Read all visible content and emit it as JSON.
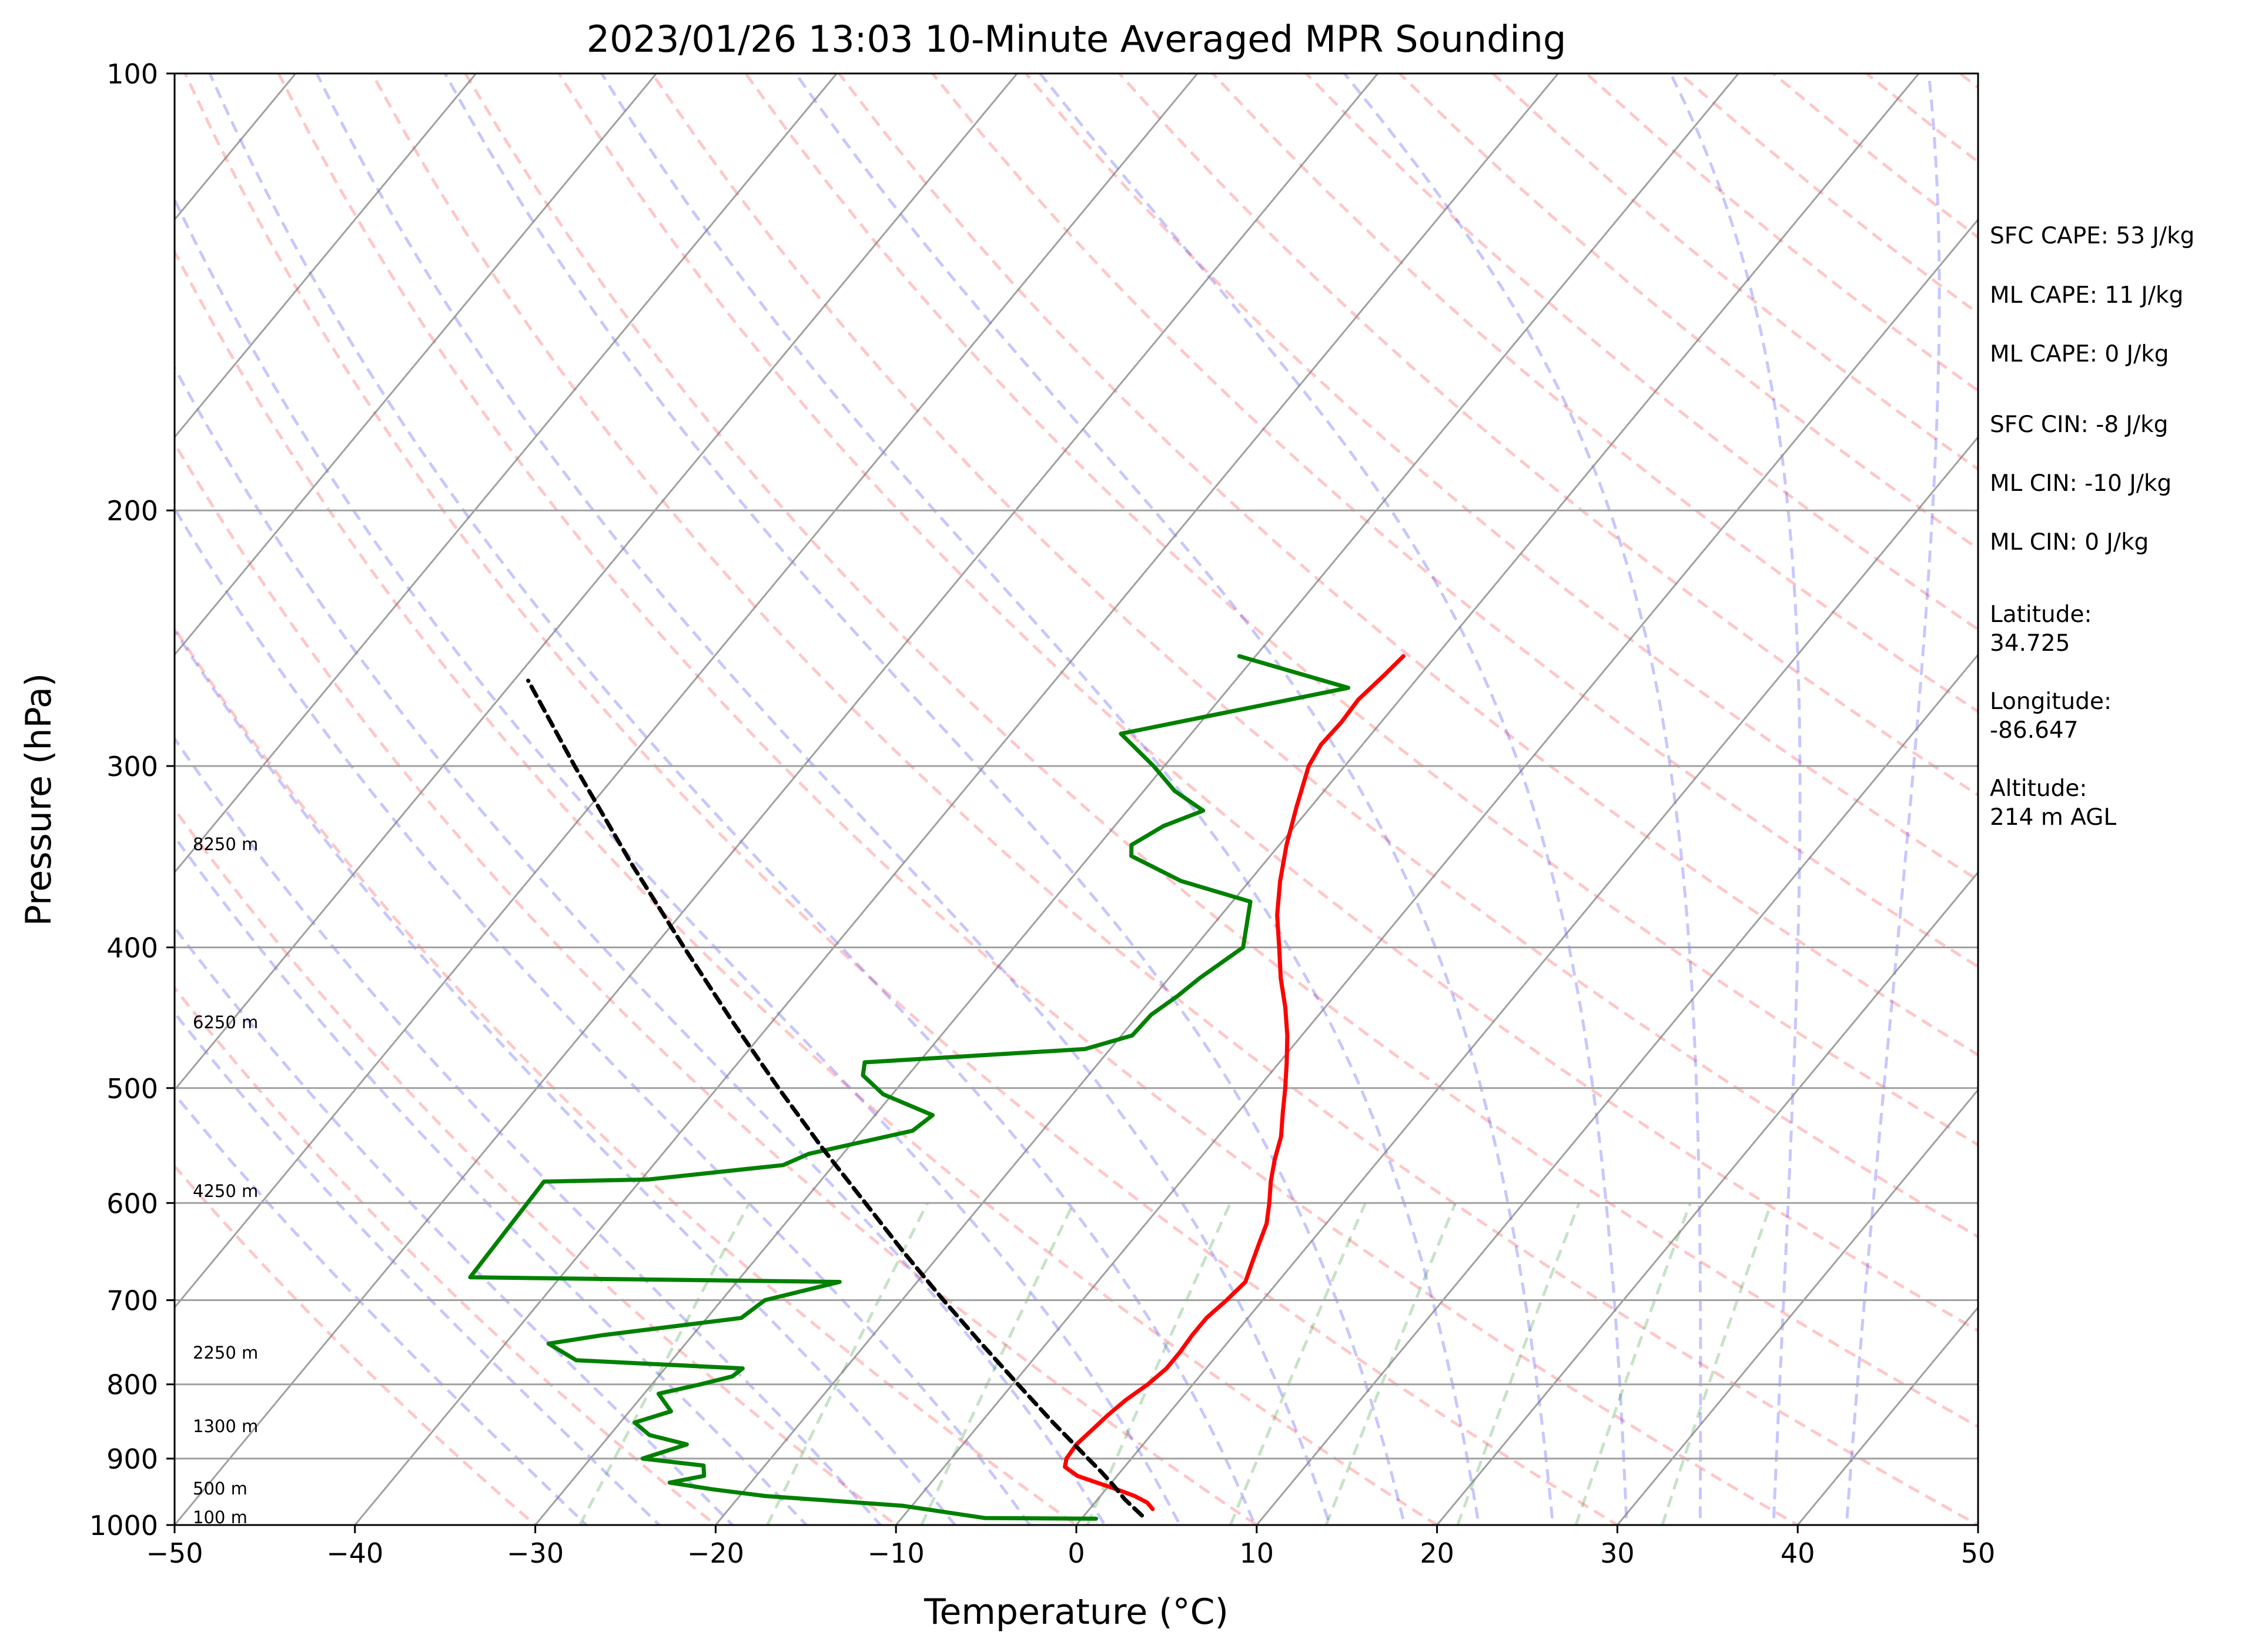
{
  "chart_data": {
    "type": "line",
    "title": "2023/01/26 13:03 10-Minute Averaged MPR Sounding",
    "xlabel": "Temperature (°C)",
    "ylabel": "Pressure (hPa)",
    "xlim": [
      -50,
      50
    ],
    "ylim": [
      1000,
      100
    ],
    "y_scale": "log",
    "skew": true,
    "grid": true,
    "x_ticks": [
      "−50",
      "−40",
      "−30",
      "−20",
      "−10",
      "0",
      "10",
      "20",
      "30",
      "40",
      "50"
    ],
    "y_ticks": [
      "1000",
      "900",
      "800",
      "700",
      "600",
      "500",
      "400",
      "300",
      "200",
      "100"
    ],
    "series": [
      {
        "id": "temperature",
        "color": "#ff0000",
        "points": [
          [
            975,
            3.5
          ],
          [
            965,
            2.9
          ],
          [
            955,
            1.9
          ],
          [
            945,
            0.6
          ],
          [
            935,
            -0.8
          ],
          [
            925,
            -2.2
          ],
          [
            912,
            -3.3
          ],
          [
            900,
            -3.6
          ],
          [
            880,
            -3.7
          ],
          [
            860,
            -3.5
          ],
          [
            840,
            -3.3
          ],
          [
            820,
            -3.0
          ],
          [
            800,
            -2.5
          ],
          [
            780,
            -2.2
          ],
          [
            760,
            -2.2
          ],
          [
            740,
            -2.3
          ],
          [
            720,
            -2.3
          ],
          [
            700,
            -2.0
          ],
          [
            680,
            -1.8
          ],
          [
            660,
            -2.3
          ],
          [
            640,
            -2.8
          ],
          [
            620,
            -3.3
          ],
          [
            600,
            -4.1
          ],
          [
            580,
            -5.0
          ],
          [
            560,
            -5.8
          ],
          [
            540,
            -6.5
          ],
          [
            520,
            -7.5
          ],
          [
            500,
            -8.5
          ],
          [
            480,
            -9.6
          ],
          [
            460,
            -10.8
          ],
          [
            440,
            -12.2
          ],
          [
            420,
            -13.8
          ],
          [
            400,
            -15.3
          ],
          [
            380,
            -16.9
          ],
          [
            360,
            -18.3
          ],
          [
            340,
            -19.6
          ],
          [
            320,
            -20.8
          ],
          [
            300,
            -22.0
          ],
          [
            290,
            -22.3
          ],
          [
            280,
            -22.2
          ],
          [
            270,
            -22.3
          ],
          [
            260,
            -22.0
          ],
          [
            252,
            -21.8
          ]
        ]
      },
      {
        "id": "dewpoint",
        "color": "#008000",
        "points": [
          [
            990,
            0.8
          ],
          [
            989,
            -5.4
          ],
          [
            970,
            -10.5
          ],
          [
            955,
            -18.6
          ],
          [
            945,
            -21.8
          ],
          [
            935,
            -24.5
          ],
          [
            925,
            -22.9
          ],
          [
            910,
            -23.4
          ],
          [
            900,
            -27.1
          ],
          [
            880,
            -25.3
          ],
          [
            867,
            -27.8
          ],
          [
            850,
            -29.2
          ],
          [
            835,
            -27.7
          ],
          [
            812,
            -29.2
          ],
          [
            800,
            -27.3
          ],
          [
            790,
            -25.9
          ],
          [
            780,
            -25.7
          ],
          [
            770,
            -35.3
          ],
          [
            750,
            -37.6
          ],
          [
            740,
            -35.0
          ],
          [
            720,
            -28.1
          ],
          [
            700,
            -27.6
          ],
          [
            680,
            -24.3
          ],
          [
            675,
            -45.0
          ],
          [
            580,
            -45.3
          ],
          [
            578,
            -39.6
          ],
          [
            565,
            -32.8
          ],
          [
            555,
            -31.9
          ],
          [
            535,
            -27.2
          ],
          [
            522,
            -26.8
          ],
          [
            505,
            -30.5
          ],
          [
            490,
            -32.5
          ],
          [
            480,
            -33.0
          ],
          [
            470,
            -21.4
          ],
          [
            460,
            -19.4
          ],
          [
            445,
            -19.3
          ],
          [
            432,
            -18.7
          ],
          [
            420,
            -18.3
          ],
          [
            400,
            -17.3
          ],
          [
            372,
            -19.0
          ],
          [
            360,
            -23.8
          ],
          [
            346,
            -27.7
          ],
          [
            340,
            -28.2
          ],
          [
            330,
            -27.3
          ],
          [
            322,
            -25.8
          ],
          [
            312,
            -28.3
          ],
          [
            300,
            -30.6
          ],
          [
            285,
            -33.9
          ],
          [
            265,
            -23.4
          ],
          [
            252,
            -30.9
          ]
        ]
      },
      {
        "id": "parcel",
        "color": "#000000",
        "dashed": true,
        "points": [
          [
            985,
            3.2
          ],
          [
            960,
            1.5
          ],
          [
            940,
            0.3
          ],
          [
            920,
            -1.0
          ],
          [
            900,
            -2.4
          ],
          [
            850,
            -6.0
          ],
          [
            800,
            -9.7
          ],
          [
            750,
            -13.6
          ],
          [
            700,
            -17.7
          ],
          [
            650,
            -22.0
          ],
          [
            600,
            -26.5
          ],
          [
            550,
            -31.4
          ],
          [
            500,
            -36.6
          ],
          [
            450,
            -42.2
          ],
          [
            400,
            -48.3
          ],
          [
            350,
            -55.1
          ],
          [
            300,
            -62.7
          ],
          [
            262,
            -69.2
          ]
        ]
      }
    ],
    "height_labels": [
      "8250 m",
      "6250 m",
      "4250 m",
      "2250 m",
      "1300 m",
      "500 m",
      "100 m"
    ],
    "stats": [
      "SFC CAPE: 53 J/kg",
      "ML CAPE: 11 J/kg",
      "ML CAPE: 0 J/kg",
      "SFC CIN: -8 J/kg",
      "ML CIN: -10 J/kg",
      "ML CIN: 0 J/kg"
    ],
    "location": {
      "latitude_label": "Latitude:",
      "latitude": "34.725",
      "longitude_label": "Longitude:",
      "longitude": "-86.647",
      "altitude_label": "Altitude:",
      "altitude": "214 m AGL"
    }
  }
}
